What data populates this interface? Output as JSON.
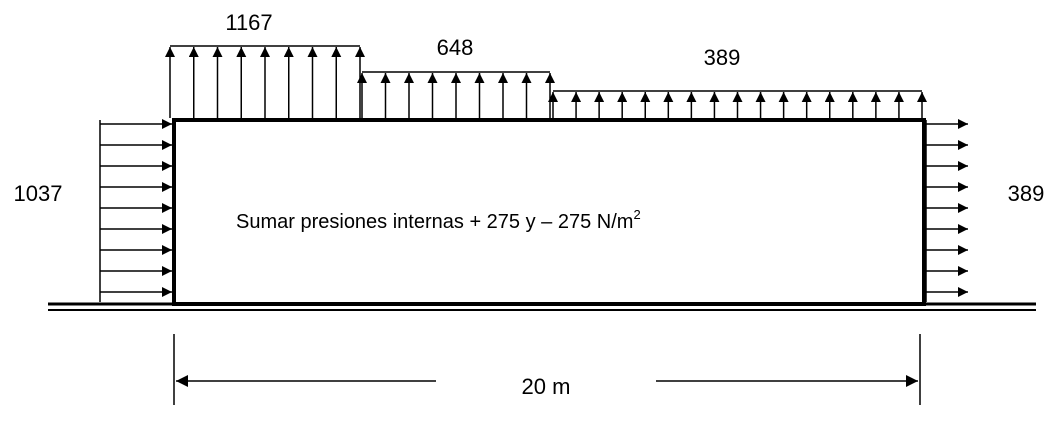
{
  "diagram": {
    "roof_loads": {
      "left_segment": "1167",
      "middle_segment": "648",
      "right_segment": "389"
    },
    "wall_loads": {
      "left_wall": "1037",
      "right_wall": "389"
    },
    "note": {
      "text": "Sumar presiones internas + 275 y – 275 N/m",
      "superscript": "2"
    },
    "dimension": {
      "span_label": "20 m"
    }
  }
}
